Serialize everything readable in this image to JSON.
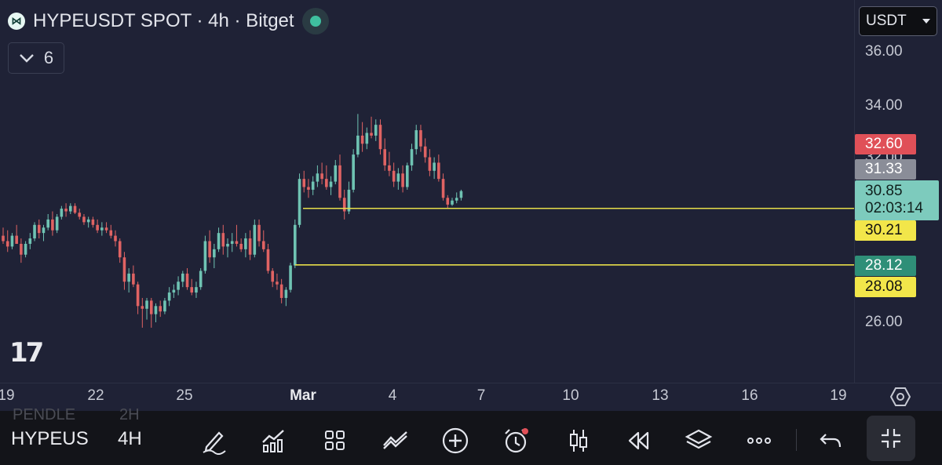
{
  "header": {
    "symbol_title": "HYPEUSDT SPOT · 4h · Bitget",
    "logo_icon": "hyperliquid-logo",
    "status_color": "#3fbf9f",
    "indicators_count": "6"
  },
  "currency_selector": {
    "value": "USDT"
  },
  "colors": {
    "up": "#6fc3b3",
    "down": "#e06363",
    "background": "#1f2236",
    "hline": "#e6dd4a"
  },
  "chart_data": {
    "type": "candlestick",
    "title": "HYPEUSDT SPOT · 4h · Bitget",
    "x_ticks": [
      "19",
      "22",
      "25",
      "Mar",
      "4",
      "7",
      "10",
      "13",
      "16",
      "19"
    ],
    "y_ticks": [
      "36.00",
      "34.00",
      "26.00"
    ],
    "ylim": [
      25.0,
      37.0
    ],
    "grid": false,
    "price_labels": [
      {
        "value": "32.60",
        "bg": "#e05058",
        "fg": "#ffffff"
      },
      {
        "value": "31.33",
        "bg": "#8a8d98",
        "fg": "#ffffff"
      },
      {
        "value": "30.21",
        "bg": "#f2e64a",
        "fg": "#111111"
      },
      {
        "value": "28.12",
        "bg": "#2f8f78",
        "fg": "#ffffff"
      },
      {
        "value": "28.08",
        "bg": "#f2e64a",
        "fg": "#111111"
      }
    ],
    "current_price": {
      "value": "30.85",
      "countdown": "02:03:14"
    },
    "horizontal_lines": [
      30.21,
      28.12
    ],
    "candles": [
      {
        "o": 29.2,
        "h": 29.5,
        "l": 28.9,
        "c": 29.0
      },
      {
        "o": 29.0,
        "h": 29.4,
        "l": 28.6,
        "c": 28.8
      },
      {
        "o": 28.8,
        "h": 29.3,
        "l": 28.7,
        "c": 29.2
      },
      {
        "o": 29.2,
        "h": 29.6,
        "l": 28.9,
        "c": 28.9
      },
      {
        "o": 28.9,
        "h": 29.1,
        "l": 28.2,
        "c": 28.5
      },
      {
        "o": 28.5,
        "h": 29.0,
        "l": 28.4,
        "c": 28.9
      },
      {
        "o": 28.9,
        "h": 29.3,
        "l": 28.7,
        "c": 29.1
      },
      {
        "o": 29.1,
        "h": 29.7,
        "l": 29.0,
        "c": 29.6
      },
      {
        "o": 29.6,
        "h": 29.8,
        "l": 29.1,
        "c": 29.3
      },
      {
        "o": 29.3,
        "h": 29.6,
        "l": 29.0,
        "c": 29.5
      },
      {
        "o": 29.5,
        "h": 30.0,
        "l": 29.4,
        "c": 29.8
      },
      {
        "o": 29.8,
        "h": 30.1,
        "l": 29.2,
        "c": 29.4
      },
      {
        "o": 29.4,
        "h": 30.0,
        "l": 29.3,
        "c": 29.9
      },
      {
        "o": 29.9,
        "h": 30.3,
        "l": 29.8,
        "c": 30.2
      },
      {
        "o": 30.2,
        "h": 30.4,
        "l": 29.9,
        "c": 30.1
      },
      {
        "o": 30.1,
        "h": 30.4,
        "l": 30.0,
        "c": 30.3
      },
      {
        "o": 30.3,
        "h": 30.4,
        "l": 30.0,
        "c": 30.05
      },
      {
        "o": 30.05,
        "h": 30.2,
        "l": 29.8,
        "c": 29.9
      },
      {
        "o": 29.9,
        "h": 30.0,
        "l": 29.6,
        "c": 29.7
      },
      {
        "o": 29.7,
        "h": 29.9,
        "l": 29.5,
        "c": 29.8
      },
      {
        "o": 29.8,
        "h": 29.9,
        "l": 29.5,
        "c": 29.6
      },
      {
        "o": 29.6,
        "h": 29.8,
        "l": 29.3,
        "c": 29.4
      },
      {
        "o": 29.4,
        "h": 29.7,
        "l": 29.2,
        "c": 29.5
      },
      {
        "o": 29.5,
        "h": 29.7,
        "l": 29.3,
        "c": 29.4
      },
      {
        "o": 29.4,
        "h": 29.6,
        "l": 29.1,
        "c": 29.2
      },
      {
        "o": 29.2,
        "h": 29.4,
        "l": 28.8,
        "c": 29.0
      },
      {
        "o": 29.0,
        "h": 29.1,
        "l": 28.2,
        "c": 28.4
      },
      {
        "o": 28.4,
        "h": 28.6,
        "l": 27.2,
        "c": 27.5
      },
      {
        "o": 27.5,
        "h": 28.0,
        "l": 27.1,
        "c": 27.8
      },
      {
        "o": 27.8,
        "h": 28.1,
        "l": 27.3,
        "c": 27.4
      },
      {
        "o": 27.4,
        "h": 27.5,
        "l": 26.3,
        "c": 26.6
      },
      {
        "o": 26.6,
        "h": 26.9,
        "l": 25.8,
        "c": 26.5
      },
      {
        "o": 26.5,
        "h": 26.9,
        "l": 26.1,
        "c": 26.8
      },
      {
        "o": 26.8,
        "h": 26.9,
        "l": 25.8,
        "c": 26.3
      },
      {
        "o": 26.3,
        "h": 26.7,
        "l": 26.0,
        "c": 26.6
      },
      {
        "o": 26.6,
        "h": 26.8,
        "l": 26.2,
        "c": 26.4
      },
      {
        "o": 26.4,
        "h": 26.9,
        "l": 26.3,
        "c": 26.8
      },
      {
        "o": 26.8,
        "h": 27.3,
        "l": 26.6,
        "c": 27.1
      },
      {
        "o": 27.1,
        "h": 27.4,
        "l": 26.9,
        "c": 27.2
      },
      {
        "o": 27.2,
        "h": 27.7,
        "l": 27.0,
        "c": 27.5
      },
      {
        "o": 27.5,
        "h": 27.9,
        "l": 27.3,
        "c": 27.8
      },
      {
        "o": 27.8,
        "h": 28.0,
        "l": 27.2,
        "c": 27.3
      },
      {
        "o": 27.3,
        "h": 27.6,
        "l": 27.0,
        "c": 27.1
      },
      {
        "o": 27.1,
        "h": 27.5,
        "l": 26.9,
        "c": 27.3
      },
      {
        "o": 27.3,
        "h": 28.0,
        "l": 27.2,
        "c": 27.9
      },
      {
        "o": 27.9,
        "h": 29.2,
        "l": 27.8,
        "c": 29.0
      },
      {
        "o": 29.0,
        "h": 29.4,
        "l": 28.2,
        "c": 28.4
      },
      {
        "o": 28.4,
        "h": 28.9,
        "l": 28.0,
        "c": 28.7
      },
      {
        "o": 28.7,
        "h": 29.5,
        "l": 28.6,
        "c": 29.3
      },
      {
        "o": 29.3,
        "h": 29.6,
        "l": 28.5,
        "c": 28.8
      },
      {
        "o": 28.8,
        "h": 29.1,
        "l": 28.4,
        "c": 28.9
      },
      {
        "o": 28.9,
        "h": 29.3,
        "l": 28.6,
        "c": 29.0
      },
      {
        "o": 29.0,
        "h": 29.6,
        "l": 28.8,
        "c": 28.9
      },
      {
        "o": 28.9,
        "h": 29.1,
        "l": 28.6,
        "c": 28.7
      },
      {
        "o": 28.7,
        "h": 29.3,
        "l": 28.4,
        "c": 29.1
      },
      {
        "o": 29.1,
        "h": 29.4,
        "l": 28.3,
        "c": 28.5
      },
      {
        "o": 28.5,
        "h": 29.8,
        "l": 28.4,
        "c": 29.6
      },
      {
        "o": 29.6,
        "h": 29.8,
        "l": 28.8,
        "c": 29.0
      },
      {
        "o": 29.0,
        "h": 29.4,
        "l": 28.6,
        "c": 28.7
      },
      {
        "o": 28.7,
        "h": 28.9,
        "l": 27.8,
        "c": 27.9
      },
      {
        "o": 27.9,
        "h": 28.0,
        "l": 27.3,
        "c": 27.5
      },
      {
        "o": 27.5,
        "h": 27.8,
        "l": 27.2,
        "c": 27.4
      },
      {
        "o": 27.4,
        "h": 27.6,
        "l": 26.7,
        "c": 26.9
      },
      {
        "o": 26.9,
        "h": 27.3,
        "l": 26.6,
        "c": 27.2
      },
      {
        "o": 27.2,
        "h": 28.2,
        "l": 27.1,
        "c": 28.1
      },
      {
        "o": 28.1,
        "h": 29.8,
        "l": 28.0,
        "c": 29.6
      },
      {
        "o": 29.6,
        "h": 31.5,
        "l": 29.5,
        "c": 31.3
      },
      {
        "o": 31.3,
        "h": 31.6,
        "l": 30.8,
        "c": 31.0
      },
      {
        "o": 31.0,
        "h": 31.3,
        "l": 30.6,
        "c": 30.9
      },
      {
        "o": 30.9,
        "h": 31.4,
        "l": 30.7,
        "c": 31.2
      },
      {
        "o": 31.2,
        "h": 31.8,
        "l": 31.0,
        "c": 31.5
      },
      {
        "o": 31.5,
        "h": 31.9,
        "l": 31.1,
        "c": 31.3
      },
      {
        "o": 31.3,
        "h": 31.8,
        "l": 30.9,
        "c": 31.0
      },
      {
        "o": 31.0,
        "h": 31.4,
        "l": 30.7,
        "c": 31.2
      },
      {
        "o": 31.2,
        "h": 32.0,
        "l": 31.1,
        "c": 31.8
      },
      {
        "o": 31.8,
        "h": 32.2,
        "l": 30.5,
        "c": 30.6
      },
      {
        "o": 30.6,
        "h": 30.9,
        "l": 29.8,
        "c": 30.1
      },
      {
        "o": 30.1,
        "h": 31.2,
        "l": 30.0,
        "c": 30.9
      },
      {
        "o": 30.9,
        "h": 32.4,
        "l": 30.8,
        "c": 32.2
      },
      {
        "o": 32.2,
        "h": 33.7,
        "l": 32.1,
        "c": 32.9
      },
      {
        "o": 32.9,
        "h": 33.4,
        "l": 32.3,
        "c": 32.6
      },
      {
        "o": 32.6,
        "h": 33.2,
        "l": 32.4,
        "c": 33.0
      },
      {
        "o": 33.0,
        "h": 33.6,
        "l": 32.8,
        "c": 32.9
      },
      {
        "o": 32.9,
        "h": 33.5,
        "l": 32.7,
        "c": 33.3
      },
      {
        "o": 33.3,
        "h": 33.5,
        "l": 32.2,
        "c": 32.4
      },
      {
        "o": 32.4,
        "h": 32.8,
        "l": 31.6,
        "c": 31.8
      },
      {
        "o": 31.8,
        "h": 32.3,
        "l": 31.4,
        "c": 31.6
      },
      {
        "o": 31.6,
        "h": 31.9,
        "l": 31.0,
        "c": 31.2
      },
      {
        "o": 31.2,
        "h": 31.7,
        "l": 30.9,
        "c": 31.5
      },
      {
        "o": 31.5,
        "h": 31.8,
        "l": 30.8,
        "c": 31.0
      },
      {
        "o": 31.0,
        "h": 31.9,
        "l": 30.9,
        "c": 31.8
      },
      {
        "o": 31.8,
        "h": 32.6,
        "l": 31.6,
        "c": 32.4
      },
      {
        "o": 32.4,
        "h": 33.3,
        "l": 32.2,
        "c": 33.1
      },
      {
        "o": 33.1,
        "h": 33.3,
        "l": 32.3,
        "c": 32.5
      },
      {
        "o": 32.5,
        "h": 32.8,
        "l": 31.9,
        "c": 32.1
      },
      {
        "o": 32.1,
        "h": 32.4,
        "l": 31.4,
        "c": 31.6
      },
      {
        "o": 31.6,
        "h": 32.1,
        "l": 31.3,
        "c": 31.9
      },
      {
        "o": 31.9,
        "h": 32.2,
        "l": 31.2,
        "c": 31.3
      },
      {
        "o": 31.3,
        "h": 31.5,
        "l": 30.5,
        "c": 30.6
      },
      {
        "o": 30.6,
        "h": 30.7,
        "l": 30.2,
        "c": 30.35
      },
      {
        "o": 30.35,
        "h": 30.6,
        "l": 30.3,
        "c": 30.5
      },
      {
        "o": 30.5,
        "h": 30.8,
        "l": 30.4,
        "c": 30.6
      },
      {
        "o": 30.6,
        "h": 30.9,
        "l": 30.5,
        "c": 30.85
      }
    ]
  },
  "time_axis": {
    "settings_icon": "hexagon-settings-icon"
  },
  "toolbar": {
    "symbol": "HYPEUS",
    "timeframe": "4H",
    "ghost_symbol_above": "PENDLE",
    "ghost_tf_above": "2H",
    "icons": [
      "pen-icon",
      "indicators-icon",
      "grid-icon",
      "compare-icon",
      "add-icon",
      "alert-icon",
      "candles-icon",
      "replay-icon",
      "layers-icon",
      "more-icon",
      "undo-icon",
      "fullscreen-exit-icon"
    ]
  }
}
